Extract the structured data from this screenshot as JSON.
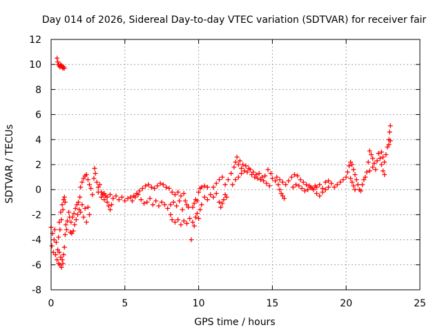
{
  "chart_data": {
    "type": "scatter",
    "title": "Day 014 of 2026, Sidereal Day-to-day VTEC variation (SDTVAR) for receiver fair",
    "xlabel": "GPS time / hours",
    "ylabel": "SDTVAR / TECUs",
    "xlim": [
      0,
      25
    ],
    "ylim": [
      -8,
      12
    ],
    "xticks": [
      "0",
      "5",
      "10",
      "15",
      "20",
      "25"
    ],
    "yticks": [
      "-8",
      "-6",
      "-4",
      "-2",
      "0",
      "2",
      "4",
      "6",
      "8",
      "10",
      "12"
    ],
    "grid": true,
    "marker": "+",
    "color": "#ff0000",
    "series": [
      {
        "name": "SDTVAR",
        "points": [
          [
            0.0,
            -3.0
          ],
          [
            0.05,
            -4.5
          ],
          [
            0.1,
            -3.5
          ],
          [
            0.15,
            -5.0
          ],
          [
            0.2,
            -4.0
          ],
          [
            0.25,
            -3.2
          ],
          [
            0.3,
            -5.2
          ],
          [
            0.35,
            -4.2
          ],
          [
            0.4,
            -5.6
          ],
          [
            0.45,
            -4.8
          ],
          [
            0.5,
            -5.9
          ],
          [
            0.55,
            -5.0
          ],
          [
            0.6,
            -6.0
          ],
          [
            0.65,
            -5.4
          ],
          [
            0.7,
            -6.2
          ],
          [
            0.75,
            -5.6
          ],
          [
            0.8,
            -5.9
          ],
          [
            0.85,
            -5.2
          ],
          [
            0.9,
            -4.6
          ],
          [
            0.95,
            -3.6
          ],
          [
            0.4,
            10.5
          ],
          [
            0.45,
            10.2
          ],
          [
            0.5,
            10.0
          ],
          [
            0.55,
            9.9
          ],
          [
            0.6,
            9.8
          ],
          [
            0.65,
            10.0
          ],
          [
            0.7,
            9.9
          ],
          [
            0.75,
            9.8
          ],
          [
            0.8,
            9.7
          ],
          [
            0.85,
            9.8
          ],
          [
            0.9,
            9.7
          ],
          [
            0.5,
            -3.8
          ],
          [
            0.55,
            -2.6
          ],
          [
            0.6,
            -3.2
          ],
          [
            0.65,
            -1.8
          ],
          [
            0.7,
            -2.4
          ],
          [
            0.75,
            -1.2
          ],
          [
            0.8,
            -1.6
          ],
          [
            0.85,
            -0.8
          ],
          [
            0.9,
            -0.6
          ],
          [
            0.95,
            -1.0
          ],
          [
            1.0,
            -2.8
          ],
          [
            1.05,
            -3.2
          ],
          [
            1.1,
            -2.5
          ],
          [
            1.2,
            -1.8
          ],
          [
            1.25,
            -2.2
          ],
          [
            1.3,
            -3.4
          ],
          [
            1.4,
            -3.5
          ],
          [
            1.5,
            -3.3
          ],
          [
            1.6,
            -2.8
          ],
          [
            1.7,
            -2.4
          ],
          [
            1.8,
            -2.0
          ],
          [
            1.9,
            -1.6
          ],
          [
            1.35,
            -2.6
          ],
          [
            1.45,
            -2.2
          ],
          [
            1.55,
            -1.9
          ],
          [
            1.65,
            -1.5
          ],
          [
            1.75,
            -1.2
          ],
          [
            1.85,
            -1.0
          ],
          [
            1.95,
            -0.6
          ],
          [
            2.0,
            -1.8
          ],
          [
            2.1,
            -1.2
          ],
          [
            2.2,
            -2.2
          ],
          [
            2.3,
            -1.5
          ],
          [
            2.4,
            -2.6
          ],
          [
            2.5,
            -1.4
          ],
          [
            2.6,
            -2.0
          ],
          [
            2.0,
            0.2
          ],
          [
            2.1,
            0.6
          ],
          [
            2.2,
            0.9
          ],
          [
            2.3,
            1.1
          ],
          [
            2.4,
            1.2
          ],
          [
            2.5,
            0.8
          ],
          [
            2.6,
            0.4
          ],
          [
            2.7,
            0.1
          ],
          [
            2.8,
            -0.4
          ],
          [
            2.9,
            0.9
          ],
          [
            2.95,
            1.7
          ],
          [
            3.0,
            1.3
          ],
          [
            3.1,
            0.6
          ],
          [
            3.2,
            0.2
          ],
          [
            3.3,
            0.4
          ],
          [
            3.4,
            -0.2
          ],
          [
            3.5,
            -0.4
          ],
          [
            3.6,
            -0.8
          ],
          [
            3.7,
            -0.5
          ],
          [
            3.8,
            -1.0
          ],
          [
            3.9,
            -1.3
          ],
          [
            4.0,
            -1.6
          ],
          [
            4.1,
            -1.2
          ],
          [
            3.2,
            -0.2
          ],
          [
            3.4,
            -0.6
          ],
          [
            3.6,
            -0.3
          ],
          [
            3.8,
            -0.6
          ],
          [
            4.0,
            -0.4
          ],
          [
            4.2,
            -0.7
          ],
          [
            4.4,
            -0.5
          ],
          [
            4.6,
            -0.8
          ],
          [
            4.8,
            -0.6
          ],
          [
            5.0,
            -0.9
          ],
          [
            5.2,
            -0.7
          ],
          [
            5.4,
            -0.6
          ],
          [
            5.6,
            -0.5
          ],
          [
            5.8,
            -0.3
          ],
          [
            6.0,
            -0.1
          ],
          [
            6.2,
            0.1
          ],
          [
            6.4,
            0.3
          ],
          [
            6.6,
            0.4
          ],
          [
            6.8,
            0.2
          ],
          [
            7.0,
            0.1
          ],
          [
            5.5,
            -0.9
          ],
          [
            5.7,
            -0.6
          ],
          [
            5.9,
            -0.4
          ],
          [
            6.1,
            -0.8
          ],
          [
            6.3,
            -1.1
          ],
          [
            6.5,
            -1.0
          ],
          [
            6.7,
            -0.7
          ],
          [
            6.9,
            -1.2
          ],
          [
            7.1,
            -0.9
          ],
          [
            7.3,
            -1.3
          ],
          [
            7.5,
            -1.0
          ],
          [
            7.7,
            -1.2
          ],
          [
            7.9,
            -1.5
          ],
          [
            8.1,
            -1.2
          ],
          [
            7.2,
            0.3
          ],
          [
            7.4,
            0.5
          ],
          [
            7.6,
            0.4
          ],
          [
            7.8,
            0.2
          ],
          [
            8.0,
            0.1
          ],
          [
            8.2,
            -0.2
          ],
          [
            8.4,
            -0.4
          ],
          [
            8.6,
            -0.2
          ],
          [
            8.8,
            -0.5
          ],
          [
            9.0,
            -0.3
          ],
          [
            9.1,
            -0.9
          ],
          [
            9.2,
            -1.2
          ],
          [
            9.3,
            -1.4
          ],
          [
            8.3,
            -1.0
          ],
          [
            8.5,
            -1.3
          ],
          [
            8.7,
            -0.9
          ],
          [
            8.9,
            -1.6
          ],
          [
            8.1,
            -2.0
          ],
          [
            8.2,
            -2.4
          ],
          [
            8.4,
            -2.6
          ],
          [
            8.6,
            -2.4
          ],
          [
            8.8,
            -2.8
          ],
          [
            9.0,
            -2.5
          ],
          [
            9.2,
            -2.7
          ],
          [
            9.4,
            -2.3
          ],
          [
            9.5,
            -4.0
          ],
          [
            9.6,
            -2.6
          ],
          [
            9.7,
            -2.9
          ],
          [
            9.8,
            -2.2
          ],
          [
            9.9,
            -1.9
          ],
          [
            10.0,
            -2.3
          ],
          [
            10.1,
            -1.6
          ],
          [
            10.2,
            -1.2
          ],
          [
            9.6,
            -1.4
          ],
          [
            9.7,
            -1.1
          ],
          [
            9.8,
            -0.8
          ],
          [
            9.9,
            -0.9
          ],
          [
            10.0,
            -0.2
          ],
          [
            10.1,
            0.1
          ],
          [
            10.2,
            0.2
          ],
          [
            10.4,
            0.3
          ],
          [
            10.6,
            0.2
          ],
          [
            10.4,
            -0.6
          ],
          [
            10.6,
            -0.8
          ],
          [
            10.8,
            -0.4
          ],
          [
            11.0,
            -0.6
          ],
          [
            11.2,
            -0.3
          ],
          [
            11.4,
            -1.0
          ],
          [
            11.5,
            -1.4
          ],
          [
            11.6,
            -1.1
          ],
          [
            11.7,
            -0.8
          ],
          [
            11.8,
            -0.4
          ],
          [
            11.9,
            -0.6
          ],
          [
            11.0,
            0.2
          ],
          [
            11.2,
            0.5
          ],
          [
            11.4,
            0.8
          ],
          [
            11.6,
            1.0
          ],
          [
            11.8,
            0.4
          ],
          [
            12.0,
            0.8
          ],
          [
            12.2,
            1.3
          ],
          [
            12.4,
            1.8
          ],
          [
            12.5,
            2.2
          ],
          [
            12.6,
            2.6
          ],
          [
            12.7,
            2.0
          ],
          [
            12.8,
            2.3
          ],
          [
            12.9,
            1.7
          ],
          [
            12.3,
            0.4
          ],
          [
            12.5,
            0.8
          ],
          [
            12.7,
            1.0
          ],
          [
            12.9,
            1.3
          ],
          [
            13.1,
            1.5
          ],
          [
            13.3,
            1.4
          ],
          [
            13.5,
            1.6
          ],
          [
            13.7,
            1.4
          ],
          [
            13.9,
            1.2
          ],
          [
            14.1,
            1.3
          ],
          [
            14.3,
            1.0
          ],
          [
            14.5,
            1.1
          ],
          [
            14.7,
            1.6
          ],
          [
            14.9,
            1.3
          ],
          [
            13.0,
            2.0
          ],
          [
            13.2,
            1.9
          ],
          [
            13.4,
            1.7
          ],
          [
            13.6,
            1.2
          ],
          [
            13.8,
            1.0
          ],
          [
            14.0,
            0.9
          ],
          [
            14.2,
            0.8
          ],
          [
            14.4,
            0.7
          ],
          [
            14.6,
            0.5
          ],
          [
            14.8,
            0.3
          ],
          [
            15.0,
            0.9
          ],
          [
            15.2,
            0.7
          ],
          [
            15.4,
            0.4
          ],
          [
            15.5,
            0.0
          ],
          [
            15.6,
            -0.3
          ],
          [
            15.7,
            -0.5
          ],
          [
            15.8,
            -0.7
          ],
          [
            15.3,
            1.0
          ],
          [
            15.5,
            0.8
          ],
          [
            15.7,
            0.6
          ],
          [
            15.9,
            0.4
          ],
          [
            16.1,
            0.7
          ],
          [
            16.3,
            1.0
          ],
          [
            16.5,
            1.2
          ],
          [
            16.7,
            1.1
          ],
          [
            16.9,
            0.8
          ],
          [
            17.1,
            0.6
          ],
          [
            17.3,
            0.4
          ],
          [
            17.5,
            0.3
          ],
          [
            17.7,
            0.1
          ],
          [
            17.9,
            0.3
          ],
          [
            16.4,
            0.2
          ],
          [
            16.6,
            0.4
          ],
          [
            16.8,
            0.3
          ],
          [
            17.0,
            0.1
          ],
          [
            17.2,
            -0.1
          ],
          [
            17.4,
            0.0
          ],
          [
            17.6,
            0.2
          ],
          [
            17.8,
            0.0
          ],
          [
            18.0,
            0.2
          ],
          [
            18.2,
            0.4
          ],
          [
            18.4,
            0.1
          ],
          [
            18.6,
            0.0
          ],
          [
            18.8,
            0.2
          ],
          [
            18.0,
            -0.3
          ],
          [
            18.2,
            -0.5
          ],
          [
            18.4,
            -0.2
          ],
          [
            18.6,
            0.6
          ],
          [
            18.8,
            0.7
          ],
          [
            19.0,
            0.5
          ],
          [
            19.2,
            0.2
          ],
          [
            19.4,
            0.4
          ],
          [
            19.6,
            0.6
          ],
          [
            19.8,
            0.8
          ],
          [
            20.0,
            1.0
          ],
          [
            20.1,
            1.4
          ],
          [
            20.2,
            1.9
          ],
          [
            20.3,
            2.2
          ],
          [
            20.4,
            2.0
          ],
          [
            20.5,
            1.6
          ],
          [
            20.6,
            1.2
          ],
          [
            20.7,
            0.8
          ],
          [
            20.8,
            0.4
          ],
          [
            20.9,
            0.0
          ],
          [
            21.0,
            -0.1
          ],
          [
            20.3,
            0.9
          ],
          [
            20.4,
            0.6
          ],
          [
            20.5,
            0.3
          ],
          [
            20.6,
            0.0
          ],
          [
            21.1,
            0.4
          ],
          [
            21.2,
            0.8
          ],
          [
            21.3,
            1.0
          ],
          [
            21.4,
            1.4
          ],
          [
            21.5,
            2.2
          ],
          [
            21.6,
            3.1
          ],
          [
            21.7,
            2.8
          ],
          [
            21.8,
            2.5
          ],
          [
            21.9,
            2.1
          ],
          [
            21.6,
            1.5
          ],
          [
            21.8,
            1.8
          ],
          [
            22.0,
            1.6
          ],
          [
            22.1,
            2.3
          ],
          [
            22.2,
            2.9
          ],
          [
            22.3,
            2.5
          ],
          [
            22.4,
            2.0
          ],
          [
            22.5,
            1.5
          ],
          [
            22.6,
            1.2
          ],
          [
            22.4,
            3.0
          ],
          [
            22.5,
            2.6
          ],
          [
            22.6,
            2.2
          ],
          [
            22.7,
            2.8
          ],
          [
            22.8,
            3.4
          ],
          [
            22.9,
            4.0
          ],
          [
            22.95,
            4.6
          ],
          [
            23.0,
            5.1
          ],
          [
            22.9,
            3.6
          ],
          [
            23.0,
            3.9
          ]
        ]
      }
    ]
  }
}
